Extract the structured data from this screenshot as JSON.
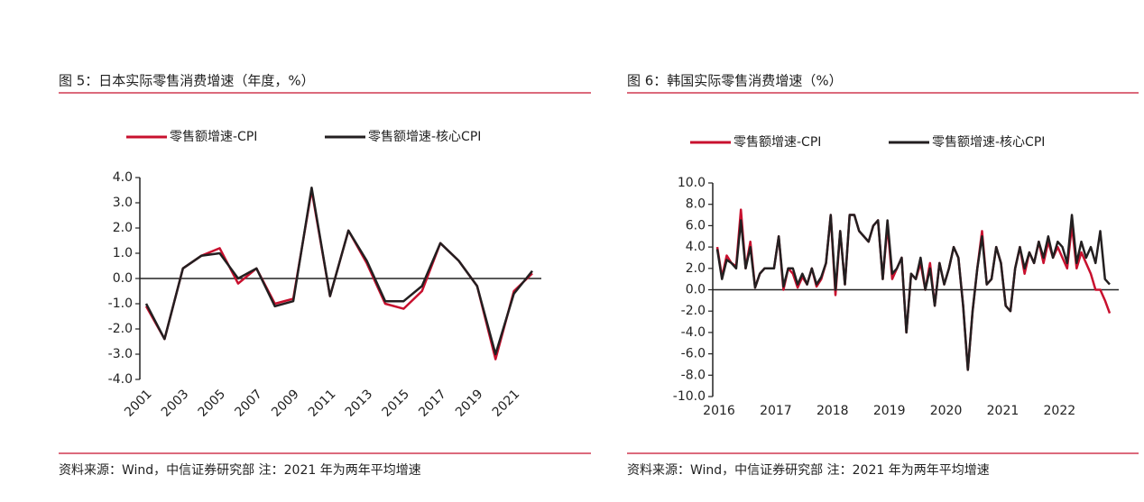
{
  "chart_data": [
    {
      "type": "line",
      "title": "图 5：日本实际零售消费增速（年度，%）",
      "source": "资料来源：Wind，中信证券研究部 注：2021 年为两年平均增速",
      "categories": [
        "2001",
        null,
        "2003",
        null,
        "2005",
        null,
        "2007",
        null,
        "2009",
        null,
        "2011",
        null,
        "2013",
        null,
        "2015",
        null,
        "2017",
        null,
        "2019",
        null,
        "2021",
        null
      ],
      "series": [
        {
          "name": "零售额增速-CPI",
          "color": "#c8102e",
          "values": [
            -1.1,
            -2.4,
            0.4,
            0.9,
            1.2,
            -0.2,
            0.4,
            -1.0,
            -0.8,
            3.5,
            -0.7,
            1.9,
            0.6,
            -1.0,
            -1.2,
            -0.5,
            1.4,
            0.7,
            -0.3,
            -3.2,
            -0.5,
            0.2
          ]
        },
        {
          "name": "零售额增速-核心CPI",
          "color": "#231f20",
          "values": [
            -1.0,
            -2.4,
            0.4,
            0.9,
            1.0,
            0.0,
            0.4,
            -1.1,
            -0.9,
            3.6,
            -0.7,
            1.9,
            0.7,
            -0.9,
            -0.9,
            -0.3,
            1.4,
            0.7,
            -0.3,
            -3.0,
            -0.6,
            0.3
          ]
        }
      ],
      "ylim": [
        -4,
        4
      ],
      "yticks": [
        {
          "value": -4,
          "label": "-4.0"
        },
        {
          "value": -3,
          "label": "-3.0"
        },
        {
          "value": -2,
          "label": "-2.0"
        },
        {
          "value": -1,
          "label": "-1.0"
        },
        {
          "value": 0,
          "label": "0.0"
        },
        {
          "value": 1,
          "label": "1.0"
        },
        {
          "value": 2,
          "label": "2.0"
        },
        {
          "value": 3,
          "label": "3.0"
        },
        {
          "value": 4,
          "label": "4.0"
        }
      ],
      "legend": "top"
    },
    {
      "type": "line",
      "title": "图 6：韩国实际零售消费增速（%）",
      "source": "资料来源：Wind，中信证券研究部 注：2021 年为两年平均增速",
      "categories": [
        "2016",
        null,
        null,
        null,
        null,
        null,
        null,
        null,
        null,
        null,
        null,
        null,
        "2017",
        null,
        null,
        null,
        null,
        null,
        null,
        null,
        null,
        null,
        null,
        null,
        "2018",
        null,
        null,
        null,
        null,
        null,
        null,
        null,
        null,
        null,
        null,
        null,
        "2019",
        null,
        null,
        null,
        null,
        null,
        null,
        null,
        null,
        null,
        null,
        null,
        "2020",
        null,
        null,
        null,
        null,
        null,
        null,
        null,
        null,
        null,
        null,
        null,
        "2021",
        null,
        null,
        null,
        null,
        null,
        null,
        null,
        null,
        null,
        null,
        null,
        "2022",
        null,
        null,
        null,
        null,
        null,
        null,
        null,
        null,
        null,
        null,
        null
      ],
      "series": [
        {
          "name": "零售额增速-CPI",
          "color": "#c8102e",
          "values": [
            4.0,
            1.2,
            3.2,
            2.5,
            2.2,
            7.5,
            2.0,
            4.5,
            0.2,
            1.5,
            2.0,
            2.0,
            2.0,
            5.0,
            0.0,
            2.0,
            1.5,
            0.2,
            1.2,
            0.5,
            2.0,
            0.3,
            1.0,
            2.5,
            7.0,
            -0.5,
            5.5,
            0.5,
            7.0,
            7.0,
            5.5,
            5.0,
            4.5,
            6.0,
            6.5,
            1.0,
            6.0,
            1.0,
            2.0,
            3.0,
            -4.0,
            1.5,
            1.0,
            2.5,
            0.0,
            2.5,
            -1.5,
            2.5,
            0.5,
            2.0,
            4.0,
            3.0,
            -1.5,
            -7.5,
            -2.0,
            2.0,
            5.5,
            0.5,
            1.0,
            4.0,
            2.5,
            -1.5,
            -2.0,
            2.0,
            4.0,
            1.5,
            3.5,
            2.5,
            4.5,
            2.5,
            4.5,
            3.0,
            4.0,
            3.0,
            2.0,
            6.0,
            2.0,
            3.5,
            2.5,
            1.5,
            0.0,
            0.0,
            -1.0,
            -2.2
          ]
        },
        {
          "name": "零售额增速-核心CPI",
          "color": "#231f20",
          "values": [
            3.8,
            1.0,
            2.8,
            2.5,
            2.0,
            6.5,
            2.0,
            4.0,
            0.2,
            1.5,
            2.0,
            2.0,
            2.0,
            5.0,
            0.3,
            2.0,
            2.0,
            0.5,
            1.5,
            0.5,
            2.0,
            0.5,
            1.2,
            2.5,
            7.0,
            0.0,
            5.5,
            0.5,
            7.0,
            7.0,
            5.5,
            5.0,
            4.5,
            6.0,
            6.5,
            1.0,
            6.5,
            1.5,
            2.0,
            3.0,
            -4.0,
            1.5,
            1.0,
            3.0,
            0.0,
            2.0,
            -1.5,
            2.5,
            0.5,
            2.0,
            4.0,
            3.0,
            -1.5,
            -7.5,
            -2.0,
            2.0,
            5.0,
            0.5,
            1.0,
            4.0,
            2.5,
            -1.5,
            -2.0,
            2.0,
            4.0,
            2.0,
            3.5,
            2.5,
            4.5,
            3.0,
            5.0,
            3.0,
            4.5,
            4.0,
            2.5,
            7.0,
            2.5,
            4.5,
            3.0,
            4.0,
            2.5,
            5.5,
            1.0,
            0.5
          ]
        }
      ],
      "ylim": [
        -10,
        10
      ],
      "yticks": [
        {
          "value": -10,
          "label": "-10.0"
        },
        {
          "value": -8,
          "label": "-8.0"
        },
        {
          "value": -6,
          "label": "-6.0"
        },
        {
          "value": -4,
          "label": "-4.0"
        },
        {
          "value": -2,
          "label": "-2.0"
        },
        {
          "value": 0,
          "label": "0.0"
        },
        {
          "value": 2,
          "label": "2.0"
        },
        {
          "value": 4,
          "label": "4.0"
        },
        {
          "value": 6,
          "label": "6.0"
        },
        {
          "value": 8,
          "label": "8.0"
        },
        {
          "value": 10,
          "label": "10.0"
        }
      ],
      "legend": "top"
    }
  ]
}
